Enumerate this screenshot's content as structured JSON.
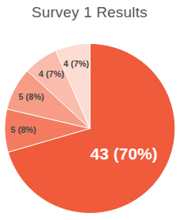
{
  "chart_data": {
    "type": "pie",
    "title": "Survey 1 Results",
    "values": [
      43,
      5,
      5,
      4,
      4
    ],
    "value_labels": [
      "43 (70%)",
      "5 (8%)",
      "5 (8%)",
      "4 (7%)",
      "4 (7%)"
    ],
    "colors": [
      "#ef5b3b",
      "#f47b5f",
      "#f79c86",
      "#f9bcad",
      "#fcdcd3"
    ],
    "data_labels": true
  }
}
